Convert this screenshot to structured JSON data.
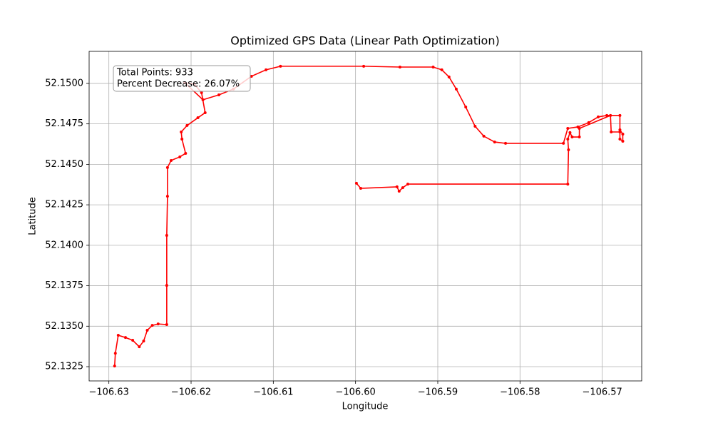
{
  "chart_data": {
    "type": "line",
    "title": "Optimized GPS Data (Linear Path Optimization)",
    "xlabel": "Longitude",
    "ylabel": "Latitude",
    "annotations": [
      "Total Points: 933",
      "Percent Decrease: 26.07%"
    ],
    "color": "#ff0000",
    "grid": true,
    "markers": true,
    "xlim": [
      -106.6324,
      -106.5652
    ],
    "ylim": [
      52.13162,
      52.15198
    ],
    "xticks": [
      {
        "value": -106.63,
        "label": "−106.63"
      },
      {
        "value": -106.62,
        "label": "−106.62"
      },
      {
        "value": -106.61,
        "label": "−106.61"
      },
      {
        "value": -106.6,
        "label": "−106.60"
      },
      {
        "value": -106.59,
        "label": "−106.59"
      },
      {
        "value": -106.58,
        "label": "−106.58"
      },
      {
        "value": -106.57,
        "label": "−106.57"
      }
    ],
    "yticks": [
      52.1325,
      {
        "value": 52.135,
        "label": "52.1350"
      },
      52.1375,
      {
        "value": 52.14,
        "label": "52.1400"
      },
      52.1425,
      {
        "value": 52.145,
        "label": "52.1450"
      },
      52.1475,
      {
        "value": 52.15,
        "label": "52.1500"
      }
    ],
    "x": [
      -106.6293,
      -106.62921,
      -106.62886,
      -106.62798,
      -106.6271,
      -106.6263,
      -106.62577,
      -106.62533,
      -106.62472,
      -106.62401,
      -106.62296,
      -106.62296,
      -106.62296,
      -106.62287,
      -106.62287,
      -106.62243,
      -106.62137,
      -106.62067,
      -106.62111,
      -106.6212,
      -106.62049,
      -106.61917,
      -106.61829,
      -106.61873,
      -106.61961,
      -106.62076,
      -106.61856,
      -106.61662,
      -106.61486,
      -106.61266,
      -106.61089,
      -106.60913,
      -106.59901,
      -106.5946,
      -106.59056,
      -106.58951,
      -106.58863,
      -106.58775,
      -106.5866,
      -106.58546,
      -106.5844,
      -106.58308,
      -106.58176,
      -106.57472,
      -106.57419,
      -106.57296,
      -106.57164,
      -106.57049,
      -106.56944,
      -106.56785,
      -106.56785,
      -106.5675,
      -106.5675,
      -106.56785,
      -106.56785,
      -106.56891,
      -106.569,
      -106.57278,
      -106.57278,
      -106.57366,
      -106.57392,
      -106.57419,
      -106.5741,
      -106.57419,
      -106.59364,
      -106.59426,
      -106.5947,
      -106.59496,
      -106.59937,
      -106.59989
    ],
    "y": [
      52.13254,
      52.13333,
      52.13444,
      52.1343,
      52.13413,
      52.13373,
      52.13408,
      52.13475,
      52.13505,
      52.13514,
      52.1351,
      52.13752,
      52.14061,
      52.14303,
      52.1448,
      52.14524,
      52.14546,
      52.14568,
      52.14656,
      52.147,
      52.1474,
      52.14788,
      52.14819,
      52.14943,
      52.14996,
      52.15004,
      52.14899,
      52.14929,
      52.14965,
      52.15044,
      52.15084,
      52.15106,
      52.15106,
      52.15101,
      52.15101,
      52.15084,
      52.1504,
      52.14965,
      52.14854,
      52.14735,
      52.14674,
      52.14638,
      52.1463,
      52.1463,
      52.14722,
      52.14731,
      52.14758,
      52.14793,
      52.14802,
      52.14802,
      52.14713,
      52.14687,
      52.14643,
      52.14656,
      52.147,
      52.147,
      52.14802,
      52.14722,
      52.14669,
      52.14669,
      52.14696,
      52.14656,
      52.1459,
      52.14378,
      52.14378,
      52.14356,
      52.14334,
      52.14361,
      52.14352,
      52.14383
    ]
  }
}
